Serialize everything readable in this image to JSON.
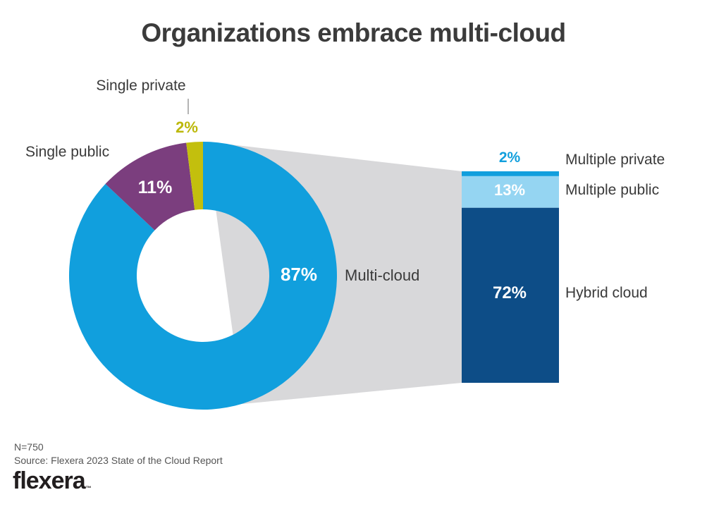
{
  "title": "Organizations embrace multi-cloud",
  "chart_data": {
    "type": "pie",
    "title": "Organizations embrace multi-cloud",
    "subtype": "donut-with-linked-stacked-bar",
    "donut": {
      "start_angle_deg": 0,
      "direction": "clockwise",
      "segments": [
        {
          "label": "Multi-cloud",
          "value": 87,
          "value_label": "87%",
          "color": "#119fdd"
        },
        {
          "label": "Single public",
          "value": 11,
          "value_label": "11%",
          "color": "#7b3e7e"
        },
        {
          "label": "Single private",
          "value": 2,
          "value_label": "2%",
          "color": "#c3bf0d"
        }
      ]
    },
    "linked_bar": {
      "represents": "Multi-cloud",
      "total_value": 87,
      "segments": [
        {
          "label": "Multiple private",
          "value": 2,
          "value_label": "2%",
          "color": "#119fdd"
        },
        {
          "label": "Multiple public",
          "value": 13,
          "value_label": "13%",
          "color": "#95d5f2"
        },
        {
          "label": "Hybrid cloud",
          "value": 72,
          "value_label": "72%",
          "color": "#0d4d87"
        }
      ]
    },
    "connector_band_color": "#d8d8da",
    "legend_position": "labels-around-chart",
    "grid": false
  },
  "footer": {
    "sample_size": "N=750",
    "source": "Source: Flexera 2023 State of the Cloud Report",
    "logo_text": "flexera",
    "trademark": "™"
  },
  "colors": {
    "title_text": "#3b3b3b",
    "label_text": "#3a3a3a",
    "footer_text": "#555555",
    "white_label": "#ffffff",
    "tick_line": "#9b9b9b"
  }
}
